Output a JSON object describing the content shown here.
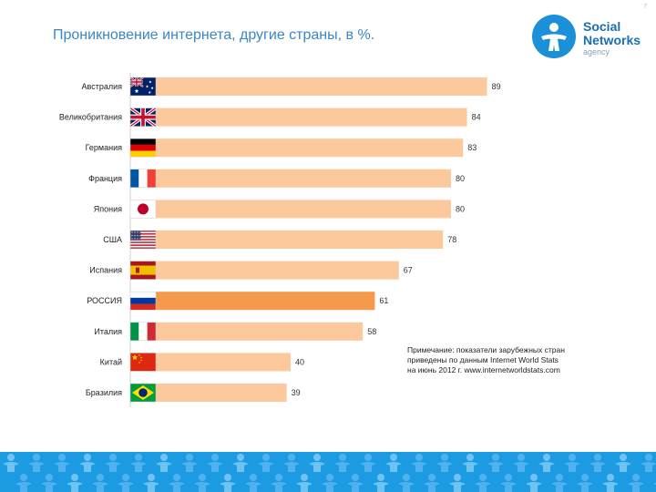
{
  "slide": {
    "title": "Проникновение интернета, другие страны, в %.",
    "page_number": "7"
  },
  "logo": {
    "word1": "Social",
    "word2": "Networks",
    "word3": "agency"
  },
  "note": {
    "text": "Примечание: показатели зарубежных стран\nприведены по данным Internet World Stats\nна июнь 2012 г. www.internetworldstats.com"
  },
  "colors": {
    "bar": "#fbc99c",
    "bar_highlight": "#f59a4c",
    "accent": "#1d9be2",
    "title": "#3a86c8"
  },
  "chart_data": {
    "type": "bar",
    "orientation": "horizontal",
    "title": "Проникновение интернета, другие страны, в %.",
    "categories": [
      "Австралия",
      "Великобритания",
      "Германия",
      "Франция",
      "Япония",
      "США",
      "Испания",
      "РОССИЯ",
      "Италия",
      "Китай",
      "Бразилия"
    ],
    "flags": [
      "australia-flag",
      "uk-flag",
      "germany-flag",
      "france-flag",
      "japan-flag",
      "usa-flag",
      "spain-flag",
      "russia-flag",
      "italy-flag",
      "china-flag",
      "brazil-flag"
    ],
    "values": [
      89,
      84,
      83,
      80,
      80,
      78,
      67,
      61,
      58,
      40,
      39
    ],
    "highlight": "РОССИЯ",
    "xlim": [
      0,
      100
    ],
    "grid": false,
    "legend": "none"
  }
}
